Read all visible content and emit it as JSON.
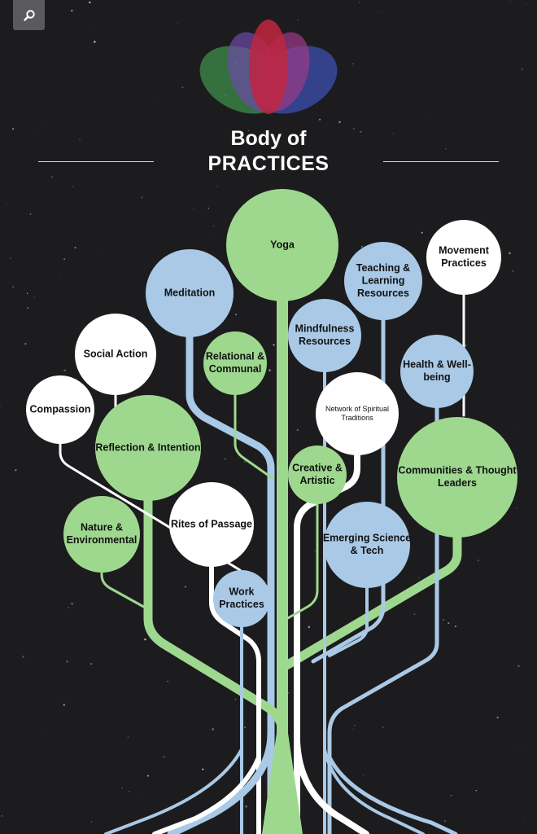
{
  "search": {
    "icon": "search-icon"
  },
  "title": {
    "line1": "Body of",
    "line2": "PRACTICES"
  },
  "colors": {
    "background": "#1c1c1e",
    "green": "#9ed88f",
    "blue": "#a9c9e6",
    "white": "#ffffff",
    "label": "#111111",
    "petal_red": "#c0263f",
    "petal_purple": "#6e4aa6",
    "petal_blue": "#3b4fb0",
    "petal_green": "#3e8e4a",
    "petal_magenta": "#9b3b88"
  },
  "nodes": [
    {
      "id": "yoga",
      "lines": [
        "Yoga"
      ],
      "color": "green"
    },
    {
      "id": "meditation",
      "lines": [
        "Meditation"
      ],
      "color": "blue"
    },
    {
      "id": "teaching",
      "lines": [
        "Teaching &",
        "Learning",
        "Resources"
      ],
      "color": "blue"
    },
    {
      "id": "movement",
      "lines": [
        "Movement",
        "Practices"
      ],
      "color": "white"
    },
    {
      "id": "social-action",
      "lines": [
        "Social Action"
      ],
      "color": "white"
    },
    {
      "id": "relational",
      "lines": [
        "Relational &",
        "Communal"
      ],
      "color": "green"
    },
    {
      "id": "mindfulness",
      "lines": [
        "Mindfulness",
        "Resources"
      ],
      "color": "blue"
    },
    {
      "id": "health",
      "lines": [
        "Health & Well-",
        "being"
      ],
      "color": "blue"
    },
    {
      "id": "compassion",
      "lines": [
        "Compassion"
      ],
      "color": "white"
    },
    {
      "id": "reflection",
      "lines": [
        "Reflection & Intention"
      ],
      "color": "green"
    },
    {
      "id": "network",
      "lines": [
        "Network of Spiritual",
        "Traditions"
      ],
      "color": "white",
      "small": true
    },
    {
      "id": "creative",
      "lines": [
        "Creative &",
        "Artistic"
      ],
      "color": "green"
    },
    {
      "id": "communities",
      "lines": [
        "Communities & Thought",
        "Leaders"
      ],
      "color": "green"
    },
    {
      "id": "rites",
      "lines": [
        "Rites of Passage"
      ],
      "color": "white"
    },
    {
      "id": "nature",
      "lines": [
        "Nature &",
        "Environmental"
      ],
      "color": "green"
    },
    {
      "id": "emerging",
      "lines": [
        "Emerging Science",
        "& Tech"
      ],
      "color": "blue"
    },
    {
      "id": "work",
      "lines": [
        "Work",
        "Practices"
      ],
      "color": "blue"
    }
  ]
}
